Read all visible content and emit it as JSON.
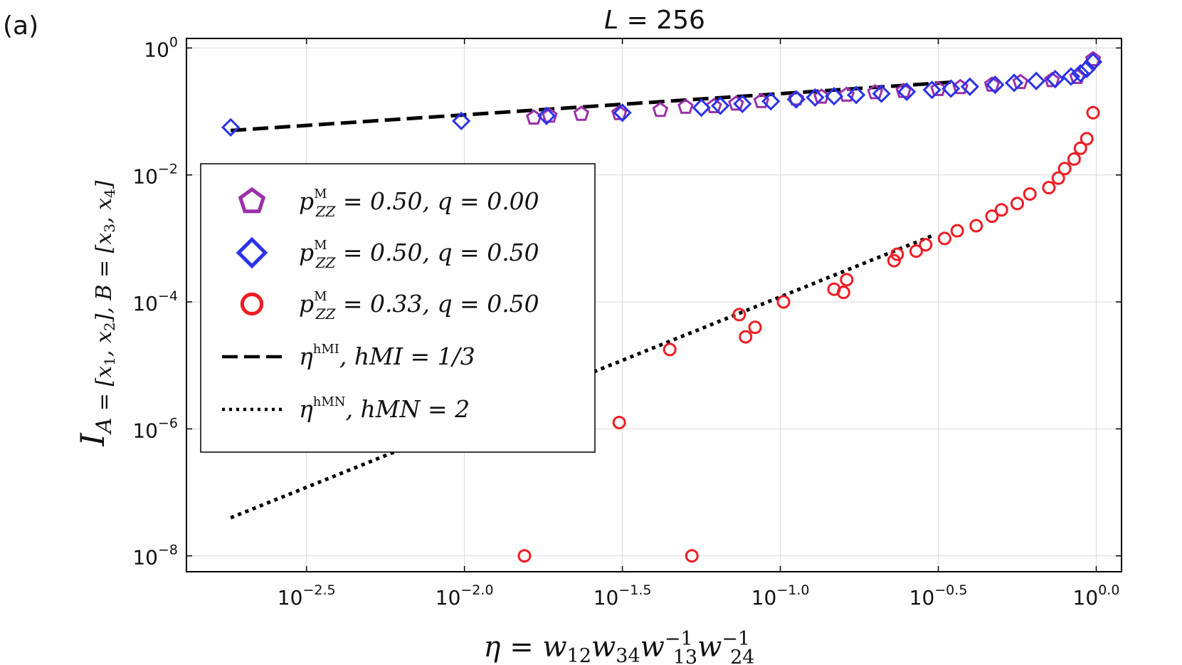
{
  "chart_data": {
    "type": "scatter",
    "panel_label": "(a)",
    "title": "L = 256",
    "xlabel": "η = w12 w34 w13^-1 w24^-1",
    "ylabel": "I_A=[x1,x2], B=[x3,x4]",
    "xscale": "log",
    "yscale": "log",
    "xlim_log10": [
      -2.88,
      0.08
    ],
    "ylim_log10": [
      -8.25,
      0.15
    ],
    "grid": true,
    "legend_position": "center-left",
    "xticks": [
      {
        "log": -2.5,
        "base": "10",
        "exp": "−2.5"
      },
      {
        "log": -2.0,
        "base": "10",
        "exp": "−2.0"
      },
      {
        "log": -1.5,
        "base": "10",
        "exp": "−1.5"
      },
      {
        "log": -1.0,
        "base": "10",
        "exp": "−1.0"
      },
      {
        "log": -0.5,
        "base": "10",
        "exp": "−0.5"
      },
      {
        "log": 0.0,
        "base": "10",
        "exp": "0.0"
      }
    ],
    "yticks": [
      {
        "log": 0,
        "base": "10",
        "exp": "0"
      },
      {
        "log": -2,
        "base": "10",
        "exp": "−2"
      },
      {
        "log": -4,
        "base": "10",
        "exp": "−4"
      },
      {
        "log": -6,
        "base": "10",
        "exp": "−6"
      },
      {
        "log": -8,
        "base": "10",
        "exp": "−8"
      }
    ],
    "series": [
      {
        "name": "p_ZZ^M = 0.50, q = 0.00",
        "marker": "pentagon",
        "color": "#9b30a8",
        "points_log10": [
          [
            -1.78,
            -1.1
          ],
          [
            -1.73,
            -1.07
          ],
          [
            -1.63,
            -1.04
          ],
          [
            -1.51,
            -1.03
          ],
          [
            -1.38,
            -0.98
          ],
          [
            -1.3,
            -0.93
          ],
          [
            -1.21,
            -0.92
          ],
          [
            -1.14,
            -0.88
          ],
          [
            -1.06,
            -0.84
          ],
          [
            -0.95,
            -0.8
          ],
          [
            -0.87,
            -0.77
          ],
          [
            -0.79,
            -0.74
          ],
          [
            -0.7,
            -0.7
          ],
          [
            -0.61,
            -0.68
          ],
          [
            -0.5,
            -0.65
          ],
          [
            -0.43,
            -0.62
          ],
          [
            -0.33,
            -0.58
          ],
          [
            -0.24,
            -0.54
          ],
          [
            -0.14,
            -0.51
          ],
          [
            -0.06,
            -0.46
          ],
          [
            -0.01,
            -0.18
          ]
        ]
      },
      {
        "name": "p_ZZ^M = 0.50, q = 0.50",
        "marker": "diamond",
        "color": "#2b33e8",
        "points_log10": [
          [
            -2.74,
            -1.25
          ],
          [
            -2.01,
            -1.15
          ],
          [
            -1.74,
            -1.07
          ],
          [
            -1.5,
            -1.02
          ],
          [
            -1.25,
            -0.94
          ],
          [
            -1.19,
            -0.91
          ],
          [
            -1.12,
            -0.88
          ],
          [
            -1.03,
            -0.84
          ],
          [
            -0.95,
            -0.81
          ],
          [
            -0.89,
            -0.78
          ],
          [
            -0.83,
            -0.76
          ],
          [
            -0.76,
            -0.74
          ],
          [
            -0.68,
            -0.72
          ],
          [
            -0.6,
            -0.69
          ],
          [
            -0.52,
            -0.66
          ],
          [
            -0.46,
            -0.64
          ],
          [
            -0.4,
            -0.61
          ],
          [
            -0.32,
            -0.58
          ],
          [
            -0.26,
            -0.55
          ],
          [
            -0.19,
            -0.52
          ],
          [
            -0.13,
            -0.49
          ],
          [
            -0.08,
            -0.45
          ],
          [
            -0.05,
            -0.4
          ],
          [
            -0.03,
            -0.33
          ],
          [
            -0.01,
            -0.22
          ]
        ]
      },
      {
        "name": "p_ZZ^M = 0.33, q = 0.50",
        "marker": "circle",
        "color": "#ef1c24",
        "points_log10": [
          [
            -1.81,
            -8.0
          ],
          [
            -1.28,
            -8.0
          ],
          [
            -1.51,
            -5.9
          ],
          [
            -1.35,
            -4.75
          ],
          [
            -1.13,
            -4.2
          ],
          [
            -1.11,
            -4.55
          ],
          [
            -1.08,
            -4.4
          ],
          [
            -0.99,
            -4.0
          ],
          [
            -0.83,
            -3.8
          ],
          [
            -0.8,
            -3.85
          ],
          [
            -0.79,
            -3.65
          ],
          [
            -0.64,
            -3.35
          ],
          [
            -0.63,
            -3.25
          ],
          [
            -0.57,
            -3.2
          ],
          [
            -0.54,
            -3.1
          ],
          [
            -0.48,
            -3.0
          ],
          [
            -0.44,
            -2.88
          ],
          [
            -0.38,
            -2.8
          ],
          [
            -0.33,
            -2.65
          ],
          [
            -0.3,
            -2.55
          ],
          [
            -0.25,
            -2.45
          ],
          [
            -0.21,
            -2.3
          ],
          [
            -0.15,
            -2.2
          ],
          [
            -0.12,
            -2.05
          ],
          [
            -0.1,
            -1.9
          ],
          [
            -0.07,
            -1.75
          ],
          [
            -0.05,
            -1.58
          ],
          [
            -0.03,
            -1.43
          ],
          [
            -0.01,
            -1.02
          ]
        ]
      }
    ],
    "fit_lines": [
      {
        "name": "η^{h_MI}, h_MI = 1/3",
        "style": "dashed",
        "slope_label": "1/3",
        "x_range_log10": [
          -2.74,
          -0.45
        ],
        "y_at_start_log10": -1.3
      },
      {
        "name": "η^{h_MN}, h_MN = 2",
        "style": "dotted",
        "slope_label": "2",
        "x_range_log10": [
          -2.74,
          -0.51
        ],
        "y_at_start_log10": -7.4
      }
    ],
    "legend": [
      {
        "marker": "pentagon",
        "color": "#9b30a8",
        "label_main": "p",
        "label_sup": "M",
        "label_sub": "ZZ",
        "label_rest": " = 0.50, q = 0.00"
      },
      {
        "marker": "diamond",
        "color": "#2b33e8",
        "label_main": "p",
        "label_sup": "M",
        "label_sub": "ZZ",
        "label_rest": " = 0.50, q = 0.50"
      },
      {
        "marker": "circle",
        "color": "#ef1c24",
        "label_main": "p",
        "label_sup": "M",
        "label_sub": "ZZ",
        "label_rest": " = 0.33, q = 0.50"
      },
      {
        "marker": "dashed",
        "color": "#000000",
        "label_main": "η",
        "label_sup": "hMI",
        "label_sub": "",
        "label_rest": ", hMI = 1/3"
      },
      {
        "marker": "dotted",
        "color": "#000000",
        "label_main": "η",
        "label_sup": "hMN",
        "label_sub": "",
        "label_rest": ", hMN = 2"
      }
    ]
  }
}
